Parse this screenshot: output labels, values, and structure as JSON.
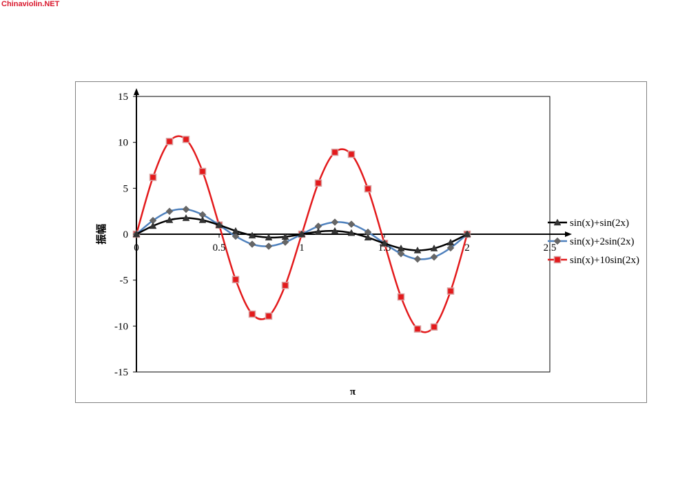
{
  "watermark": "Chinaviolin.NET",
  "chart_data": {
    "type": "line",
    "title": "",
    "xlabel": "π",
    "ylabel": "振幅",
    "xlim": [
      0,
      2.5
    ],
    "ylim": [
      -15,
      15
    ],
    "x_ticks": [
      "0",
      "0.5",
      "1",
      "1.5",
      "2",
      "2.5"
    ],
    "y_ticks": [
      "15",
      "10",
      "5",
      "0",
      "-5",
      "-10",
      "-15"
    ],
    "grid": false,
    "legend_position": "right",
    "x": [
      0,
      0.1,
      0.2,
      0.3,
      0.4,
      0.5,
      0.6,
      0.7,
      0.8,
      0.9,
      1.0,
      1.1,
      1.2,
      1.3,
      1.4,
      1.5,
      1.6,
      1.7,
      1.8,
      1.9,
      2.0
    ],
    "series": [
      {
        "name": "sin(x)+sin(2x)",
        "color": "#000000",
        "marker": "triangle",
        "values": [
          0,
          0.9,
          1.54,
          1.76,
          1.54,
          1.0,
          0.36,
          -0.14,
          -0.36,
          -0.28,
          0,
          0.28,
          0.36,
          0.14,
          -0.36,
          -1.0,
          -1.54,
          -1.76,
          -1.54,
          -0.9,
          0
        ]
      },
      {
        "name": "sin(x)+2sin(2x)",
        "color": "#4f81bd",
        "marker": "diamond",
        "values": [
          0,
          1.49,
          2.49,
          2.71,
          2.12,
          1.0,
          -0.22,
          -1.09,
          -1.31,
          -0.87,
          0,
          0.87,
          1.31,
          1.09,
          0.22,
          -1.0,
          -2.12,
          -2.71,
          -2.49,
          -1.49,
          0
        ]
      },
      {
        "name": "sin(x)+10sin(2x)",
        "color": "#e31a1c",
        "marker": "square",
        "values": [
          0,
          6.19,
          10.1,
          10.32,
          6.83,
          1.0,
          -4.94,
          -8.7,
          -8.92,
          -5.57,
          0,
          5.57,
          8.92,
          8.7,
          4.94,
          -1.0,
          -6.83,
          -10.32,
          -10.1,
          -6.19,
          0
        ]
      }
    ]
  }
}
